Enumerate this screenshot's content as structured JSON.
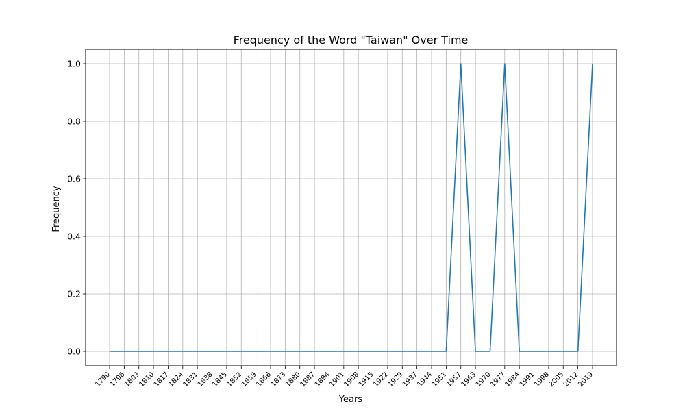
{
  "chart_data": {
    "type": "line",
    "title": "Frequency of the Word \"Taiwan\" Over Time",
    "xlabel": "Years",
    "ylabel": "Frequency",
    "ylim": [
      -0.05,
      1.05
    ],
    "yticks": [
      "0.0",
      "0.2",
      "0.4",
      "0.6",
      "0.8",
      "1.0"
    ],
    "grid": true,
    "categories": [
      "1790",
      "1796",
      "1803",
      "1810",
      "1817",
      "1824",
      "1831",
      "1838",
      "1845",
      "1852",
      "1859",
      "1866",
      "1873",
      "1880",
      "1887",
      "1894",
      "1901",
      "1908",
      "1915",
      "1922",
      "1929",
      "1937",
      "1944",
      "1951",
      "1957",
      "1963",
      "1970",
      "1977",
      "1984",
      "1991",
      "1998",
      "2005",
      "2012",
      "2019"
    ],
    "series": [
      {
        "color": "#1f77b4",
        "values": [
          0,
          0,
          0,
          0,
          0,
          0,
          0,
          0,
          0,
          0,
          0,
          0,
          0,
          0,
          0,
          0,
          0,
          0,
          0,
          0,
          0,
          0,
          0,
          0,
          1,
          0,
          0,
          1,
          0,
          0,
          0,
          0,
          0,
          1
        ]
      }
    ]
  }
}
